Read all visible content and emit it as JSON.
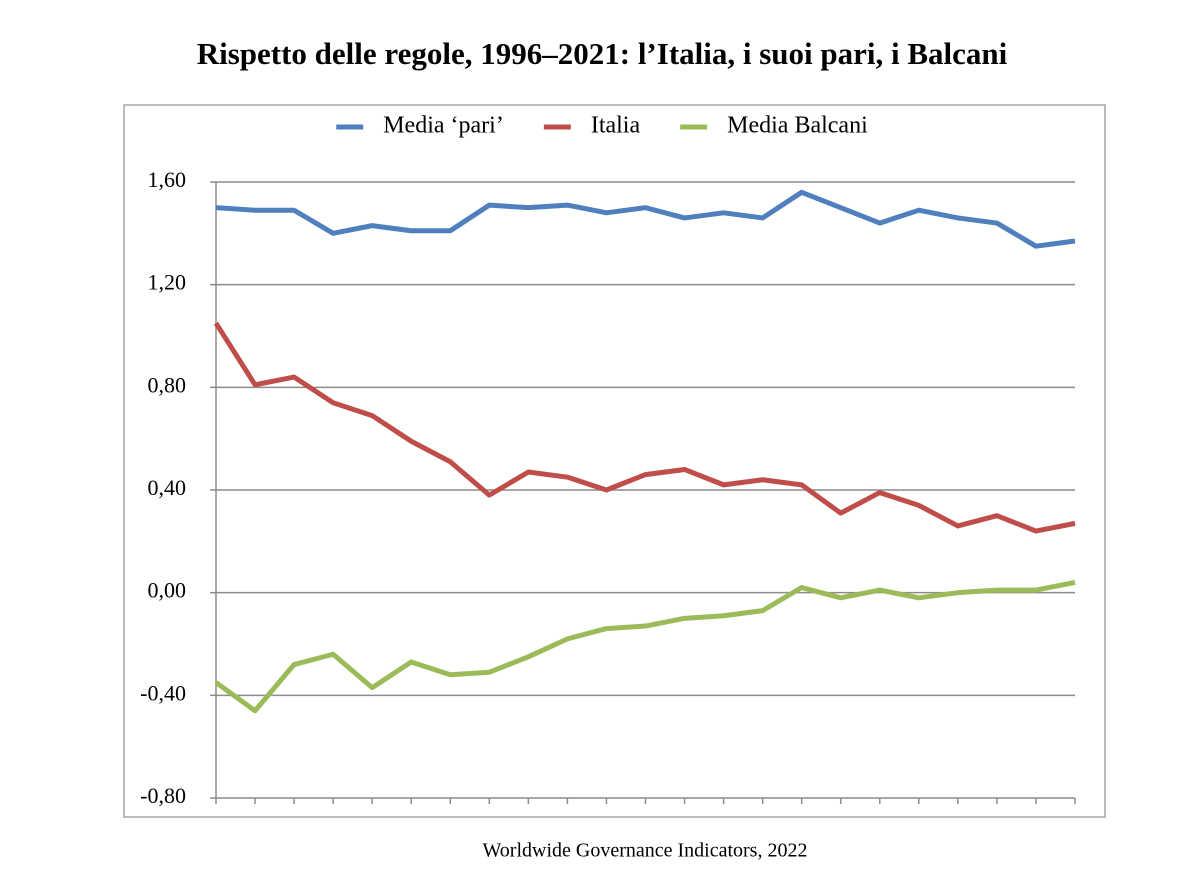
{
  "chart_data": {
    "type": "line",
    "title": "Rispetto delle regole, 1996–2021: l’Italia, i suoi pari, i Balcani",
    "source": "Worldwide Governance Indicators, 2022",
    "categories": [
      null,
      null,
      null,
      null,
      null,
      null,
      null,
      null,
      null,
      null,
      null,
      null,
      null,
      null,
      null,
      null,
      null,
      null,
      null,
      null,
      null,
      null,
      null
    ],
    "series": [
      {
        "name": "Media ‘pari’",
        "color": "#4f7fbd",
        "values": [
          1.5,
          1.49,
          1.49,
          1.4,
          1.43,
          1.41,
          1.41,
          1.51,
          1.5,
          1.51,
          1.48,
          1.5,
          1.46,
          1.48,
          1.46,
          1.56,
          1.5,
          1.44,
          1.49,
          1.46,
          1.44,
          1.35,
          1.37
        ]
      },
      {
        "name": "Italia",
        "color": "#bf4e4b",
        "values": [
          1.05,
          0.81,
          0.84,
          0.74,
          0.69,
          0.59,
          0.51,
          0.38,
          0.47,
          0.45,
          0.4,
          0.46,
          0.48,
          0.42,
          0.44,
          0.42,
          0.31,
          0.39,
          0.34,
          0.26,
          0.3,
          0.24,
          0.27
        ]
      },
      {
        "name": "Media Balcani",
        "color": "#9bbb59",
        "values": [
          -0.35,
          -0.46,
          -0.28,
          -0.24,
          -0.37,
          -0.27,
          -0.32,
          -0.31,
          -0.25,
          -0.18,
          -0.14,
          -0.13,
          -0.1,
          -0.09,
          -0.07,
          0.02,
          -0.02,
          0.01,
          -0.02,
          0.0,
          0.01,
          0.01,
          0.04
        ]
      }
    ],
    "ylim": [
      -0.8,
      1.6
    ],
    "yticks": [
      {
        "value": -0.8,
        "label": "-0,80"
      },
      {
        "value": -0.4,
        "label": "-0,40"
      },
      {
        "value": 0,
        "label": "0,00"
      },
      {
        "value": 0.4,
        "label": "0,40"
      },
      {
        "value": 0.8,
        "label": "0,80"
      },
      {
        "value": 1.2,
        "label": "1,20"
      },
      {
        "value": 1.6,
        "label": "1,60"
      }
    ],
    "grid": true
  }
}
